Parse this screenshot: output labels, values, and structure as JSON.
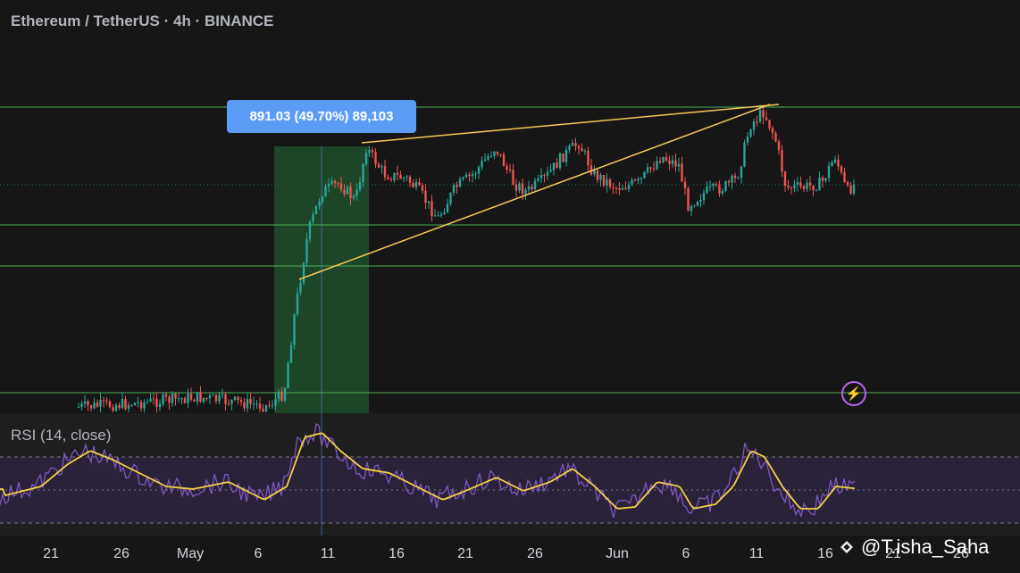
{
  "header": {
    "title": "Ethereum / TetherUS · 4h · BINANCE"
  },
  "measure": {
    "label": "891.03 (49.70%) 89,103"
  },
  "rsi": {
    "label": "RSI (14, close)"
  },
  "watermark": {
    "text": "@T.isha_Saha"
  },
  "colors": {
    "background": "#161616",
    "up": "#26a69a",
    "down": "#ef5350",
    "hline": "#4caf50",
    "trendline": "#f7c85a",
    "rsi_line": "#7e57c2",
    "rsi_ma": "#f5d142",
    "measure_fill": "#5b9cf6"
  },
  "icons": {
    "alert": "lightning-icon",
    "brand": "binance-logo-icon"
  },
  "chart_data": {
    "type": "candlestick",
    "symbol": "Ethereum / TetherUS",
    "interval": "4h",
    "exchange": "BINANCE",
    "x_tick_labels": [
      "21",
      "26",
      "May",
      "6",
      "11",
      "16",
      "21",
      "26",
      "Jun",
      "6",
      "11",
      "16",
      "21",
      "26"
    ],
    "horizontal_levels": [
      "upper",
      "mid",
      "lower",
      "base"
    ],
    "measured_move": {
      "change": 891.03,
      "percent": 49.7,
      "volume": 89103
    },
    "indicators": [
      {
        "name": "RSI",
        "length": 14,
        "source": "close",
        "bands": [
          70,
          50,
          30
        ]
      }
    ]
  }
}
